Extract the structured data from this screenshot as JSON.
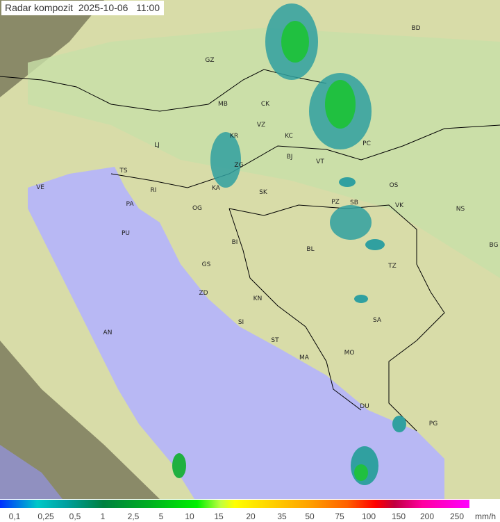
{
  "title": "Radar kompozit  2025-10-06   11:00",
  "cities": [
    "GZ",
    "BD",
    "MB",
    "CK",
    "VZ",
    "KC",
    "KR",
    "LJ",
    "BJ",
    "VT",
    "PC",
    "TS",
    "ZG",
    "KA",
    "SK",
    "OS",
    "VE",
    "RI",
    "PA",
    "PZ",
    "SB",
    "VK",
    "NS",
    "OG",
    "PU",
    "BI",
    "BL",
    "BG",
    "GS",
    "TZ",
    "ZD",
    "KN",
    "SA",
    "SI",
    "AN",
    "ST",
    "MO",
    "MA",
    "DU",
    "PG"
  ],
  "legend": {
    "ticks": [
      "0,1",
      "0,25",
      "0,5",
      "1",
      "2,5",
      "5",
      "10",
      "15",
      "20",
      "35",
      "50",
      "75",
      "100",
      "150",
      "200",
      "250"
    ],
    "unit": "mm/h"
  },
  "colors": {
    "sea": "#b8b8f4",
    "land": "#dcdca0",
    "outside": "#8c8c70",
    "radar_light": "#30a0a0",
    "radar_heavy": "#20c020"
  }
}
